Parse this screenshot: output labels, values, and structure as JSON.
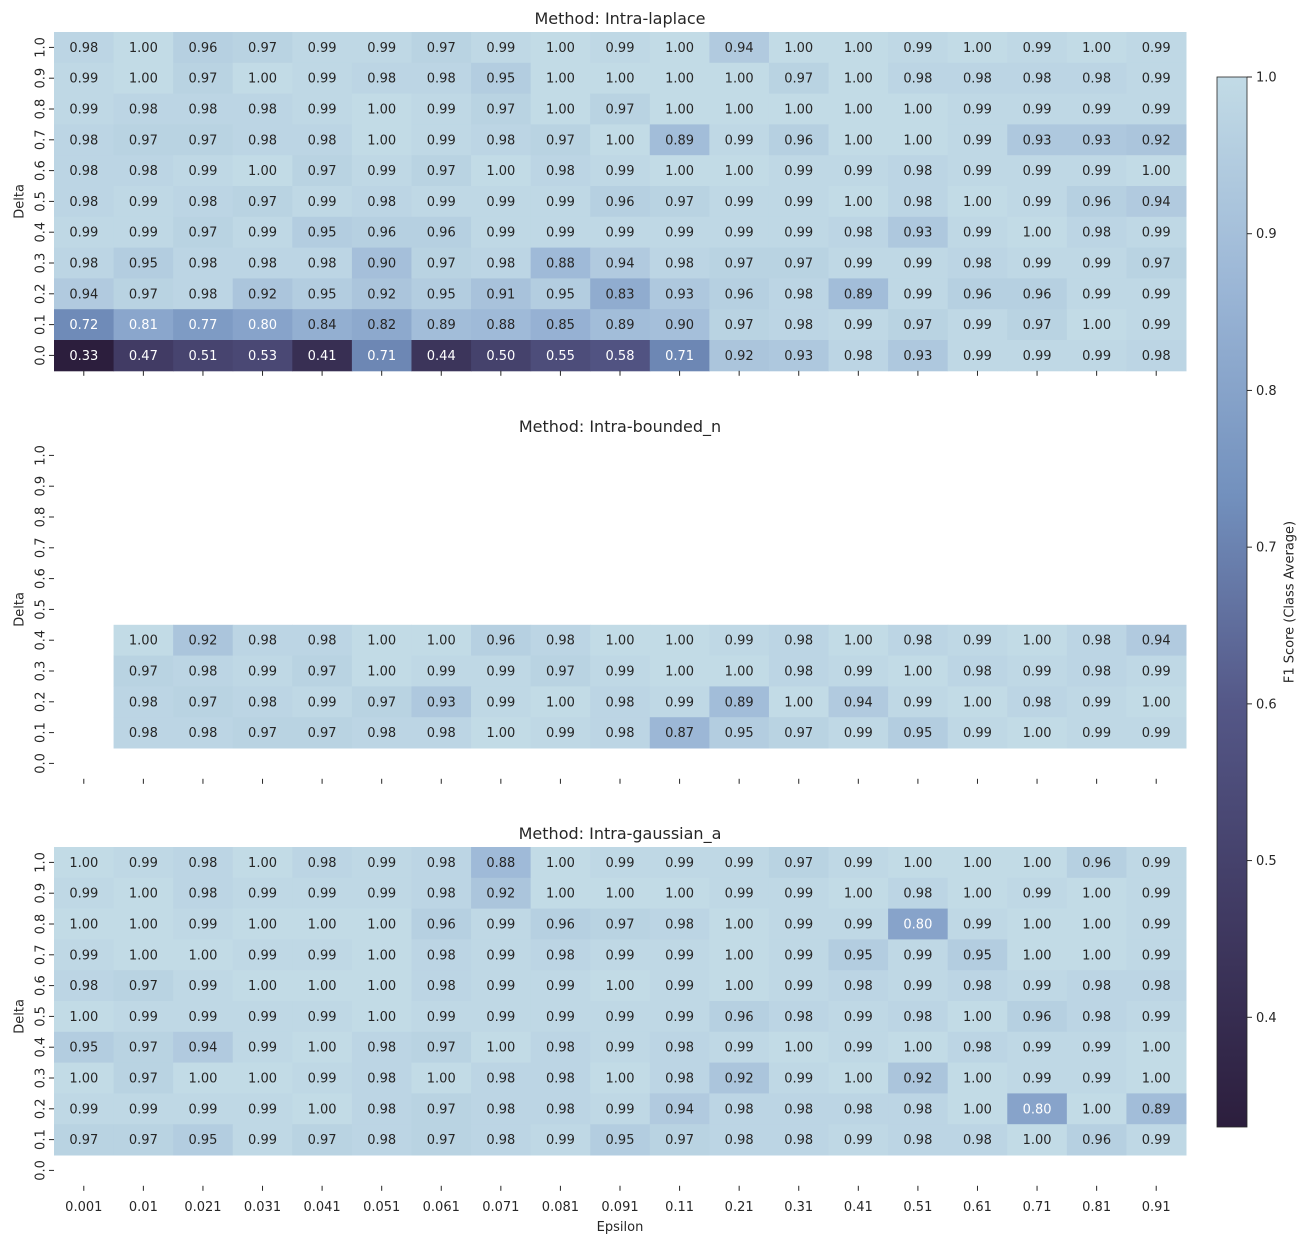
{
  "colorbar": {
    "label": "F1 Score (Class Average)",
    "min": 0.33,
    "max": 1.0,
    "ticks": [
      "0.4",
      "0.5",
      "0.6",
      "0.7",
      "0.8",
      "0.9",
      "1.0"
    ],
    "colors": [
      "#2c1e3d",
      "#403a62",
      "#545787",
      "#7290bd",
      "#9bb6d6",
      "#c2dbe6"
    ]
  },
  "chart_data": [
    {
      "type": "heatmap",
      "title": "Method: Intra-laplace",
      "xlabel": "",
      "ylabel": "Delta",
      "x": [
        "0.001",
        "0.01",
        "0.021",
        "0.031",
        "0.041",
        "0.051",
        "0.061",
        "0.071",
        "0.081",
        "0.091",
        "0.11",
        "0.21",
        "0.31",
        "0.41",
        "0.51",
        "0.61",
        "0.71",
        "0.81",
        "0.91"
      ],
      "x_ticklabels_shown": false,
      "y": [
        "1.0",
        "0.9",
        "0.8",
        "0.7",
        "0.6",
        "0.5",
        "0.4",
        "0.3",
        "0.2",
        "0.1",
        "0.0"
      ],
      "values": [
        [
          "0.98",
          "1.00",
          "0.96",
          "0.97",
          "0.99",
          "0.99",
          "0.97",
          "0.99",
          "1.00",
          "0.99",
          "1.00",
          "0.94",
          "1.00",
          "1.00",
          "0.99",
          "1.00",
          "0.99",
          "1.00",
          "0.99"
        ],
        [
          "0.99",
          "1.00",
          "0.97",
          "1.00",
          "0.99",
          "0.98",
          "0.98",
          "0.95",
          "1.00",
          "1.00",
          "1.00",
          "1.00",
          "0.97",
          "1.00",
          "0.98",
          "0.98",
          "0.98",
          "0.98",
          "0.99"
        ],
        [
          "0.99",
          "0.98",
          "0.98",
          "0.98",
          "0.99",
          "1.00",
          "0.99",
          "0.97",
          "1.00",
          "0.97",
          "1.00",
          "1.00",
          "1.00",
          "1.00",
          "1.00",
          "0.99",
          "0.99",
          "0.99",
          "0.99"
        ],
        [
          "0.98",
          "0.97",
          "0.97",
          "0.98",
          "0.98",
          "1.00",
          "0.99",
          "0.98",
          "0.97",
          "1.00",
          "0.89",
          "0.99",
          "0.96",
          "1.00",
          "1.00",
          "0.99",
          "0.93",
          "0.93",
          "0.92"
        ],
        [
          "0.98",
          "0.98",
          "0.99",
          "1.00",
          "0.97",
          "0.99",
          "0.97",
          "1.00",
          "0.98",
          "0.99",
          "1.00",
          "1.00",
          "0.99",
          "0.99",
          "0.98",
          "0.99",
          "0.99",
          "0.99",
          "1.00"
        ],
        [
          "0.98",
          "0.99",
          "0.98",
          "0.97",
          "0.99",
          "0.98",
          "0.99",
          "0.99",
          "0.99",
          "0.96",
          "0.97",
          "0.99",
          "0.99",
          "1.00",
          "0.98",
          "1.00",
          "0.99",
          "0.96",
          "0.94"
        ],
        [
          "0.99",
          "0.99",
          "0.97",
          "0.99",
          "0.95",
          "0.96",
          "0.96",
          "0.99",
          "0.99",
          "0.99",
          "0.99",
          "0.99",
          "0.99",
          "0.98",
          "0.93",
          "0.99",
          "1.00",
          "0.98",
          "0.99"
        ],
        [
          "0.98",
          "0.95",
          "0.98",
          "0.98",
          "0.98",
          "0.90",
          "0.97",
          "0.98",
          "0.88",
          "0.94",
          "0.98",
          "0.97",
          "0.97",
          "0.99",
          "0.99",
          "0.98",
          "0.99",
          "0.99",
          "0.97"
        ],
        [
          "0.94",
          "0.97",
          "0.98",
          "0.92",
          "0.95",
          "0.92",
          "0.95",
          "0.91",
          "0.95",
          "0.83",
          "0.93",
          "0.96",
          "0.98",
          "0.89",
          "0.99",
          "0.96",
          "0.96",
          "0.99",
          "0.99"
        ],
        [
          "0.72",
          "0.81",
          "0.77",
          "0.80",
          "0.84",
          "0.82",
          "0.89",
          "0.88",
          "0.85",
          "0.89",
          "0.90",
          "0.97",
          "0.98",
          "0.99",
          "0.97",
          "0.99",
          "0.97",
          "1.00",
          "0.99"
        ],
        [
          "0.33",
          "0.47",
          "0.51",
          "0.53",
          "0.41",
          "0.71",
          "0.44",
          "0.50",
          "0.55",
          "0.58",
          "0.71",
          "0.92",
          "0.93",
          "0.98",
          "0.93",
          "0.99",
          "0.99",
          "0.99",
          "0.98"
        ]
      ]
    },
    {
      "type": "heatmap",
      "title": "Method: Intra-bounded_n",
      "xlabel": "",
      "ylabel": "Delta",
      "x": [
        "0.001",
        "0.01",
        "0.021",
        "0.031",
        "0.041",
        "0.051",
        "0.061",
        "0.071",
        "0.081",
        "0.091",
        "0.11",
        "0.21",
        "0.31",
        "0.41",
        "0.51",
        "0.61",
        "0.71",
        "0.81",
        "0.91"
      ],
      "x_ticklabels_shown": false,
      "y": [
        "1.0",
        "0.9",
        "0.8",
        "0.7",
        "0.6",
        "0.5",
        "0.4",
        "0.3",
        "0.2",
        "0.1",
        "0.0"
      ],
      "values": [
        [
          null,
          null,
          null,
          null,
          null,
          null,
          null,
          null,
          null,
          null,
          null,
          null,
          null,
          null,
          null,
          null,
          null,
          null,
          null
        ],
        [
          null,
          null,
          null,
          null,
          null,
          null,
          null,
          null,
          null,
          null,
          null,
          null,
          null,
          null,
          null,
          null,
          null,
          null,
          null
        ],
        [
          null,
          null,
          null,
          null,
          null,
          null,
          null,
          null,
          null,
          null,
          null,
          null,
          null,
          null,
          null,
          null,
          null,
          null,
          null
        ],
        [
          null,
          null,
          null,
          null,
          null,
          null,
          null,
          null,
          null,
          null,
          null,
          null,
          null,
          null,
          null,
          null,
          null,
          null,
          null
        ],
        [
          null,
          null,
          null,
          null,
          null,
          null,
          null,
          null,
          null,
          null,
          null,
          null,
          null,
          null,
          null,
          null,
          null,
          null,
          null
        ],
        [
          null,
          null,
          null,
          null,
          null,
          null,
          null,
          null,
          null,
          null,
          null,
          null,
          null,
          null,
          null,
          null,
          null,
          null,
          null
        ],
        [
          null,
          "1.00",
          "0.92",
          "0.98",
          "0.98",
          "1.00",
          "1.00",
          "0.96",
          "0.98",
          "1.00",
          "1.00",
          "0.99",
          "0.98",
          "1.00",
          "0.98",
          "0.99",
          "1.00",
          "0.98",
          "0.94"
        ],
        [
          null,
          "0.97",
          "0.98",
          "0.99",
          "0.97",
          "1.00",
          "0.99",
          "0.99",
          "0.97",
          "0.99",
          "1.00",
          "1.00",
          "0.98",
          "0.99",
          "1.00",
          "0.98",
          "0.99",
          "0.98",
          "0.99"
        ],
        [
          null,
          "0.98",
          "0.97",
          "0.98",
          "0.99",
          "0.97",
          "0.93",
          "0.99",
          "1.00",
          "0.98",
          "0.99",
          "0.89",
          "1.00",
          "0.94",
          "0.99",
          "1.00",
          "0.98",
          "0.99",
          "1.00"
        ],
        [
          null,
          "0.98",
          "0.98",
          "0.97",
          "0.97",
          "0.98",
          "0.98",
          "1.00",
          "0.99",
          "0.98",
          "0.87",
          "0.95",
          "0.97",
          "0.99",
          "0.95",
          "0.99",
          "1.00",
          "0.99",
          "0.99"
        ],
        [
          null,
          null,
          null,
          null,
          null,
          null,
          null,
          null,
          null,
          null,
          null,
          null,
          null,
          null,
          null,
          null,
          null,
          null,
          null
        ]
      ]
    },
    {
      "type": "heatmap",
      "title": "Method: Intra-gaussian_a",
      "xlabel": "Epsilon",
      "ylabel": "Delta",
      "x": [
        "0.001",
        "0.01",
        "0.021",
        "0.031",
        "0.041",
        "0.051",
        "0.061",
        "0.071",
        "0.081",
        "0.091",
        "0.11",
        "0.21",
        "0.31",
        "0.41",
        "0.51",
        "0.61",
        "0.71",
        "0.81",
        "0.91"
      ],
      "x_ticklabels_shown": true,
      "y": [
        "1.0",
        "0.9",
        "0.8",
        "0.7",
        "0.6",
        "0.5",
        "0.4",
        "0.3",
        "0.2",
        "0.1",
        "0.0"
      ],
      "values": [
        [
          "1.00",
          "0.99",
          "0.98",
          "1.00",
          "0.98",
          "0.99",
          "0.98",
          "0.88",
          "1.00",
          "0.99",
          "0.99",
          "0.99",
          "0.97",
          "0.99",
          "1.00",
          "1.00",
          "1.00",
          "0.96",
          "0.99"
        ],
        [
          "0.99",
          "1.00",
          "0.98",
          "0.99",
          "0.99",
          "0.99",
          "0.98",
          "0.92",
          "1.00",
          "1.00",
          "1.00",
          "0.99",
          "0.99",
          "1.00",
          "0.98",
          "1.00",
          "0.99",
          "1.00",
          "0.99"
        ],
        [
          "1.00",
          "1.00",
          "0.99",
          "1.00",
          "1.00",
          "1.00",
          "0.96",
          "0.99",
          "0.96",
          "0.97",
          "0.98",
          "1.00",
          "0.99",
          "0.99",
          "0.80",
          "0.99",
          "1.00",
          "1.00",
          "0.99"
        ],
        [
          "0.99",
          "1.00",
          "1.00",
          "0.99",
          "0.99",
          "1.00",
          "0.98",
          "0.99",
          "0.98",
          "0.99",
          "0.99",
          "1.00",
          "0.99",
          "0.95",
          "0.99",
          "0.95",
          "1.00",
          "1.00",
          "0.99"
        ],
        [
          "0.98",
          "0.97",
          "0.99",
          "1.00",
          "1.00",
          "1.00",
          "0.98",
          "0.99",
          "0.99",
          "1.00",
          "0.99",
          "1.00",
          "0.99",
          "0.98",
          "0.99",
          "0.98",
          "0.99",
          "0.98",
          "0.98"
        ],
        [
          "1.00",
          "0.99",
          "0.99",
          "0.99",
          "0.99",
          "1.00",
          "0.99",
          "0.99",
          "0.99",
          "0.99",
          "0.99",
          "0.96",
          "0.98",
          "0.99",
          "0.98",
          "1.00",
          "0.96",
          "0.98",
          "0.99"
        ],
        [
          "0.95",
          "0.97",
          "0.94",
          "0.99",
          "1.00",
          "0.98",
          "0.97",
          "1.00",
          "0.98",
          "0.99",
          "0.98",
          "0.99",
          "1.00",
          "0.99",
          "1.00",
          "0.98",
          "0.99",
          "0.99",
          "1.00"
        ],
        [
          "1.00",
          "0.97",
          "1.00",
          "1.00",
          "0.99",
          "0.98",
          "1.00",
          "0.98",
          "0.98",
          "1.00",
          "0.98",
          "0.92",
          "0.99",
          "1.00",
          "0.92",
          "1.00",
          "0.99",
          "0.99",
          "1.00"
        ],
        [
          "0.99",
          "0.99",
          "0.99",
          "0.99",
          "1.00",
          "0.98",
          "0.97",
          "0.98",
          "0.98",
          "0.99",
          "0.94",
          "0.98",
          "0.98",
          "0.98",
          "0.98",
          "1.00",
          "0.80",
          "1.00",
          "0.89"
        ],
        [
          "0.97",
          "0.97",
          "0.95",
          "0.99",
          "0.97",
          "0.98",
          "0.97",
          "0.98",
          "0.99",
          "0.95",
          "0.97",
          "0.98",
          "0.98",
          "0.99",
          "0.98",
          "0.98",
          "1.00",
          "0.96",
          "0.99"
        ],
        [
          null,
          null,
          null,
          null,
          null,
          null,
          null,
          null,
          null,
          null,
          null,
          null,
          null,
          null,
          null,
          null,
          null,
          null,
          null
        ]
      ]
    }
  ]
}
